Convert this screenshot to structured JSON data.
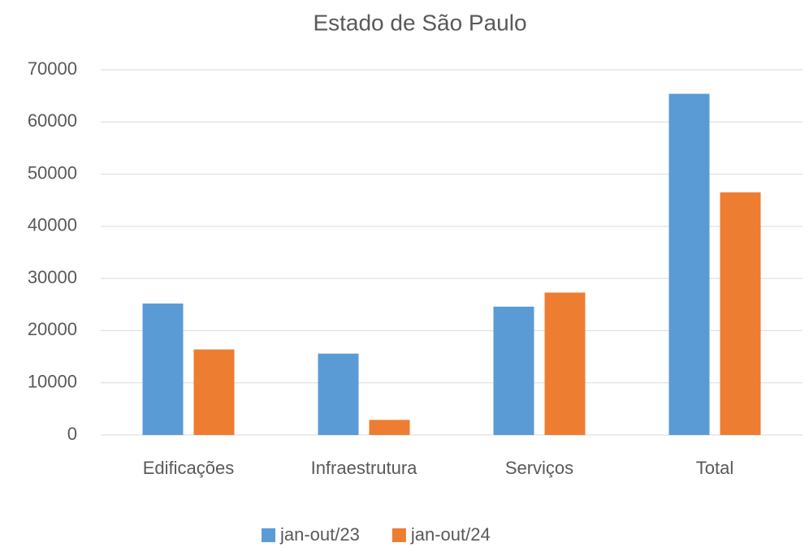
{
  "chart_data": {
    "type": "bar",
    "title": "Estado de São Paulo",
    "categories": [
      "Edificações",
      "Infraestrutura",
      "Serviços",
      "Total"
    ],
    "series": [
      {
        "name": "jan-out/23",
        "color": "#5b9bd5",
        "values": [
          25200,
          15600,
          24600,
          65400
        ]
      },
      {
        "name": "jan-out/24",
        "color": "#ed7d31",
        "values": [
          16400,
          2900,
          27300,
          46500
        ]
      }
    ],
    "ylim": [
      0,
      70000
    ],
    "yticks": [
      0,
      10000,
      20000,
      30000,
      40000,
      50000,
      60000,
      70000
    ],
    "grid": true,
    "legend": "bottom"
  }
}
